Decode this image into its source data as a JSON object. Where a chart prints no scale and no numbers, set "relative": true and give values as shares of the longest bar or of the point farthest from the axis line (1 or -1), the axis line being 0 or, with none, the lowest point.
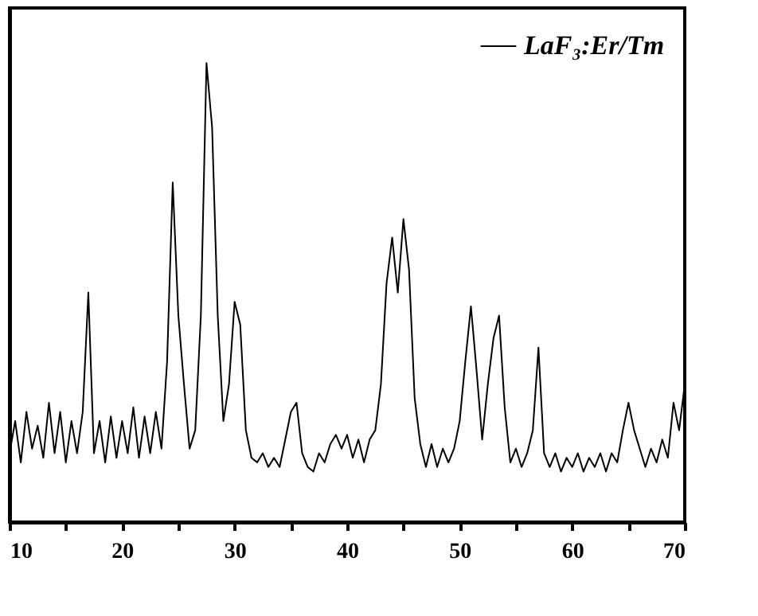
{
  "chart_data": {
    "type": "line",
    "relative": true,
    "legend": "top right",
    "grid": false,
    "tick_labels": "x",
    "xlim": [
      10,
      70
    ],
    "xticks": [
      10,
      {
        "value": 15,
        "label": null
      },
      20,
      {
        "value": 25,
        "label": null
      },
      30,
      {
        "value": 35,
        "label": null
      },
      40,
      {
        "value": 45,
        "label": null
      },
      50,
      {
        "value": 55,
        "label": null
      },
      60,
      {
        "value": 65,
        "label": null
      },
      70
    ],
    "x": [
      10,
      10.5,
      11,
      11.5,
      12,
      12.5,
      13,
      13.5,
      14,
      14.5,
      15,
      15.5,
      16,
      16.5,
      17,
      17.5,
      18,
      18.5,
      19,
      19.5,
      20,
      20.5,
      21,
      21.5,
      22,
      22.5,
      23,
      23.5,
      24,
      24.5,
      25,
      25.5,
      26,
      26.5,
      27,
      27.5,
      28,
      28.5,
      29,
      29.5,
      30,
      30.5,
      31,
      31.5,
      32,
      32.5,
      33,
      33.5,
      34,
      34.5,
      35,
      35.5,
      36,
      36.5,
      37,
      37.5,
      38,
      38.5,
      39,
      39.5,
      40,
      40.5,
      41,
      41.5,
      42,
      42.5,
      43,
      43.5,
      44,
      44.5,
      45,
      45.5,
      46,
      46.5,
      47,
      47.5,
      48,
      48.5,
      49,
      49.5,
      50,
      50.5,
      51,
      51.5,
      52,
      52.5,
      53,
      53.5,
      54,
      54.5,
      55,
      55.5,
      56,
      56.5,
      57,
      57.5,
      58,
      58.5,
      59,
      59.5,
      60,
      60.5,
      61,
      61.5,
      62,
      62.5,
      63,
      63.5,
      64,
      64.5,
      65,
      65.5,
      66,
      66.5,
      67,
      67.5,
      68,
      68.5,
      69,
      69.5,
      70
    ],
    "series": [
      {
        "name": "LaF₃:Er/Tm",
        "color": "#000000",
        "values": [
          0.15,
          0.22,
          0.13,
          0.24,
          0.16,
          0.21,
          0.14,
          0.26,
          0.15,
          0.24,
          0.13,
          0.22,
          0.15,
          0.24,
          0.5,
          0.15,
          0.22,
          0.13,
          0.23,
          0.14,
          0.22,
          0.15,
          0.25,
          0.14,
          0.23,
          0.15,
          0.24,
          0.16,
          0.35,
          0.74,
          0.45,
          0.3,
          0.16,
          0.2,
          0.45,
          1.0,
          0.86,
          0.45,
          0.22,
          0.3,
          0.48,
          0.43,
          0.2,
          0.14,
          0.13,
          0.15,
          0.12,
          0.14,
          0.12,
          0.18,
          0.24,
          0.26,
          0.15,
          0.12,
          0.11,
          0.15,
          0.13,
          0.17,
          0.19,
          0.16,
          0.19,
          0.14,
          0.18,
          0.13,
          0.18,
          0.2,
          0.3,
          0.52,
          0.62,
          0.5,
          0.66,
          0.55,
          0.27,
          0.17,
          0.12,
          0.17,
          0.12,
          0.16,
          0.13,
          0.16,
          0.22,
          0.35,
          0.47,
          0.33,
          0.18,
          0.3,
          0.4,
          0.45,
          0.25,
          0.13,
          0.16,
          0.12,
          0.15,
          0.2,
          0.38,
          0.15,
          0.12,
          0.15,
          0.11,
          0.14,
          0.12,
          0.15,
          0.11,
          0.14,
          0.12,
          0.15,
          0.11,
          0.15,
          0.13,
          0.2,
          0.26,
          0.2,
          0.16,
          0.12,
          0.16,
          0.13,
          0.18,
          0.14,
          0.26,
          0.2,
          0.3
        ]
      }
    ]
  }
}
